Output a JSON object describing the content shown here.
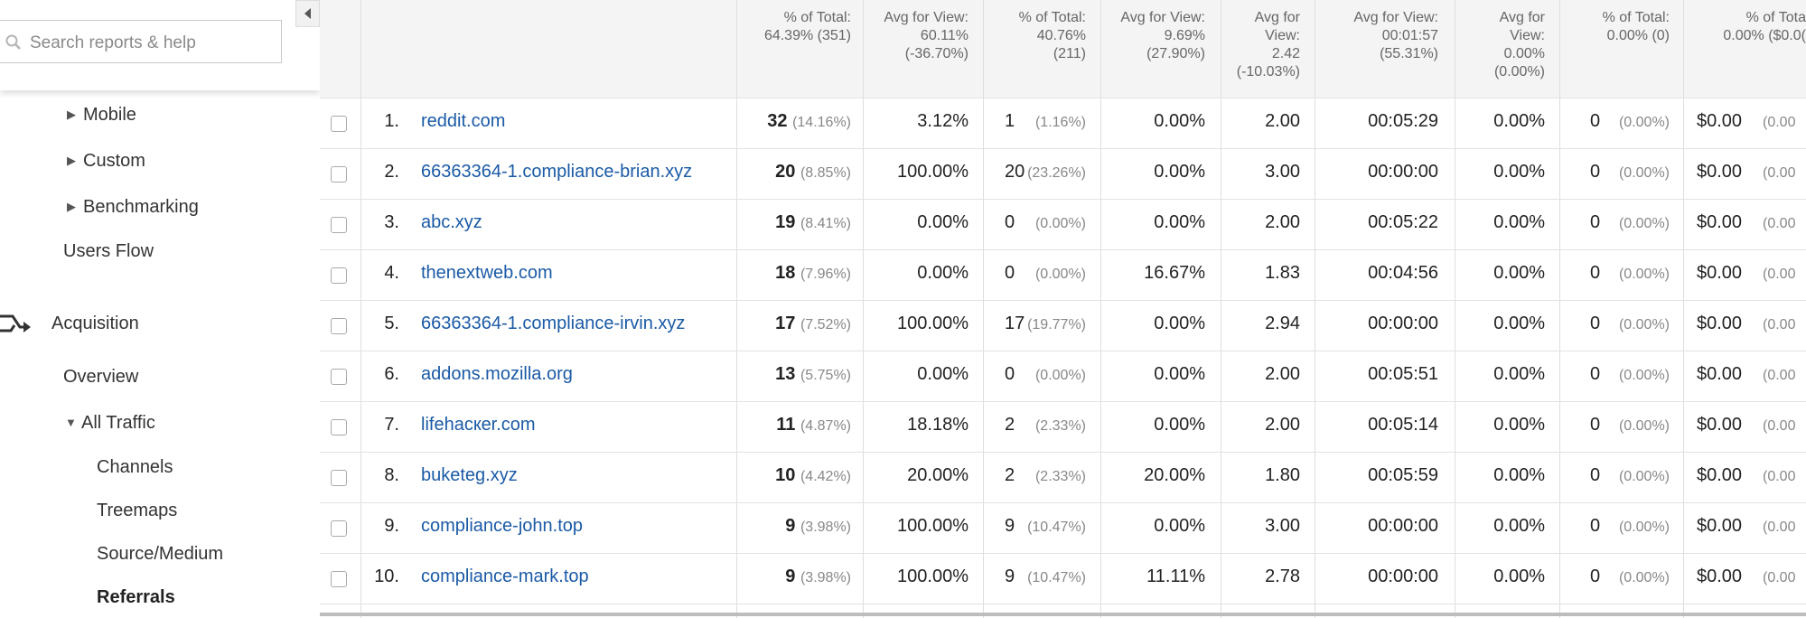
{
  "sidebar": {
    "search_placeholder": "Search reports & help",
    "items": {
      "mobile": "Mobile",
      "custom": "Custom",
      "benchmarking": "Benchmarking",
      "users_flow": "Users Flow",
      "acquisition": "Acquisition",
      "overview": "Overview",
      "all_traffic": "All Traffic",
      "channels": "Channels",
      "treemaps": "Treemaps",
      "source_medium": "Source/Medium",
      "referrals": "Referrals"
    }
  },
  "header": {
    "c1": {
      "l1": "% of Total:",
      "l2": "64.39% (351)"
    },
    "c2": {
      "l1": "Avg for View:",
      "l2": "60.11%",
      "l3": "(-36.70%)"
    },
    "c3": {
      "l1": "% of Total:",
      "l2": "40.76%",
      "l3": "(211)"
    },
    "c4": {
      "l1": "Avg for View:",
      "l2": "9.69%",
      "l3": "(27.90%)"
    },
    "c5": {
      "l1": "Avg for",
      "l2": "View:",
      "l3": "2.42",
      "l4": "(-10.03%)"
    },
    "c6": {
      "l1": "Avg for View:",
      "l2": "00:01:57",
      "l3": "(55.31%)"
    },
    "c7": {
      "l1": "Avg for",
      "l2": "View:",
      "l3": "0.00%",
      "l4": "(0.00%)"
    },
    "c8": {
      "l1": "% of Total:",
      "l2": "0.00% (0)"
    },
    "c9": {
      "l1": "% of Tota",
      "l2": "0.00% ($0.0("
    }
  },
  "rows": [
    {
      "idx": "1.",
      "source": "reddit.com",
      "users": "32",
      "users_pct": "(14.16%)",
      "new_sessions": "3.12%",
      "new_users": "1",
      "new_users_pct": "(1.16%)",
      "bounce": "0.00%",
      "pages": "2.00",
      "duration": "00:05:29",
      "conv": "0.00%",
      "goal": "0",
      "goal_pct": "(0.00%)",
      "value": "$0.00",
      "value_pct": "(0.00"
    },
    {
      "idx": "2.",
      "source": "66363364-1.compliance-brian.xyz",
      "users": "20",
      "users_pct": "(8.85%)",
      "new_sessions": "100.00%",
      "new_users": "20",
      "new_users_pct": "(23.26%)",
      "bounce": "0.00%",
      "pages": "3.00",
      "duration": "00:00:00",
      "conv": "0.00%",
      "goal": "0",
      "goal_pct": "(0.00%)",
      "value": "$0.00",
      "value_pct": "(0.00"
    },
    {
      "idx": "3.",
      "source": "abc.xyz",
      "users": "19",
      "users_pct": "(8.41%)",
      "new_sessions": "0.00%",
      "new_users": "0",
      "new_users_pct": "(0.00%)",
      "bounce": "0.00%",
      "pages": "2.00",
      "duration": "00:05:22",
      "conv": "0.00%",
      "goal": "0",
      "goal_pct": "(0.00%)",
      "value": "$0.00",
      "value_pct": "(0.00"
    },
    {
      "idx": "4.",
      "source": "thenextweb.com",
      "users": "18",
      "users_pct": "(7.96%)",
      "new_sessions": "0.00%",
      "new_users": "0",
      "new_users_pct": "(0.00%)",
      "bounce": "16.67%",
      "pages": "1.83",
      "duration": "00:04:56",
      "conv": "0.00%",
      "goal": "0",
      "goal_pct": "(0.00%)",
      "value": "$0.00",
      "value_pct": "(0.00"
    },
    {
      "idx": "5.",
      "source": "66363364-1.compliance-irvin.xyz",
      "users": "17",
      "users_pct": "(7.52%)",
      "new_sessions": "100.00%",
      "new_users": "17",
      "new_users_pct": "(19.77%)",
      "bounce": "0.00%",
      "pages": "2.94",
      "duration": "00:00:00",
      "conv": "0.00%",
      "goal": "0",
      "goal_pct": "(0.00%)",
      "value": "$0.00",
      "value_pct": "(0.00"
    },
    {
      "idx": "6.",
      "source": "addons.mozilla.org",
      "users": "13",
      "users_pct": "(5.75%)",
      "new_sessions": "0.00%",
      "new_users": "0",
      "new_users_pct": "(0.00%)",
      "bounce": "0.00%",
      "pages": "2.00",
      "duration": "00:05:51",
      "conv": "0.00%",
      "goal": "0",
      "goal_pct": "(0.00%)",
      "value": "$0.00",
      "value_pct": "(0.00"
    },
    {
      "idx": "7.",
      "source": "lifehacкer.com",
      "users": "11",
      "users_pct": "(4.87%)",
      "new_sessions": "18.18%",
      "new_users": "2",
      "new_users_pct": "(2.33%)",
      "bounce": "0.00%",
      "pages": "2.00",
      "duration": "00:05:14",
      "conv": "0.00%",
      "goal": "0",
      "goal_pct": "(0.00%)",
      "value": "$0.00",
      "value_pct": "(0.00"
    },
    {
      "idx": "8.",
      "source": "buketeg.xyz",
      "users": "10",
      "users_pct": "(4.42%)",
      "new_sessions": "20.00%",
      "new_users": "2",
      "new_users_pct": "(2.33%)",
      "bounce": "20.00%",
      "pages": "1.80",
      "duration": "00:05:59",
      "conv": "0.00%",
      "goal": "0",
      "goal_pct": "(0.00%)",
      "value": "$0.00",
      "value_pct": "(0.00"
    },
    {
      "idx": "9.",
      "source": "compliance-john.top",
      "users": "9",
      "users_pct": "(3.98%)",
      "new_sessions": "100.00%",
      "new_users": "9",
      "new_users_pct": "(10.47%)",
      "bounce": "0.00%",
      "pages": "3.00",
      "duration": "00:00:00",
      "conv": "0.00%",
      "goal": "0",
      "goal_pct": "(0.00%)",
      "value": "$0.00",
      "value_pct": "(0.00"
    },
    {
      "idx": "10.",
      "source": "compliance-mark.top",
      "users": "9",
      "users_pct": "(3.98%)",
      "new_sessions": "100.00%",
      "new_users": "9",
      "new_users_pct": "(10.47%)",
      "bounce": "11.11%",
      "pages": "2.78",
      "duration": "00:00:00",
      "conv": "0.00%",
      "goal": "0",
      "goal_pct": "(0.00%)",
      "value": "$0.00",
      "value_pct": "(0.00"
    }
  ]
}
